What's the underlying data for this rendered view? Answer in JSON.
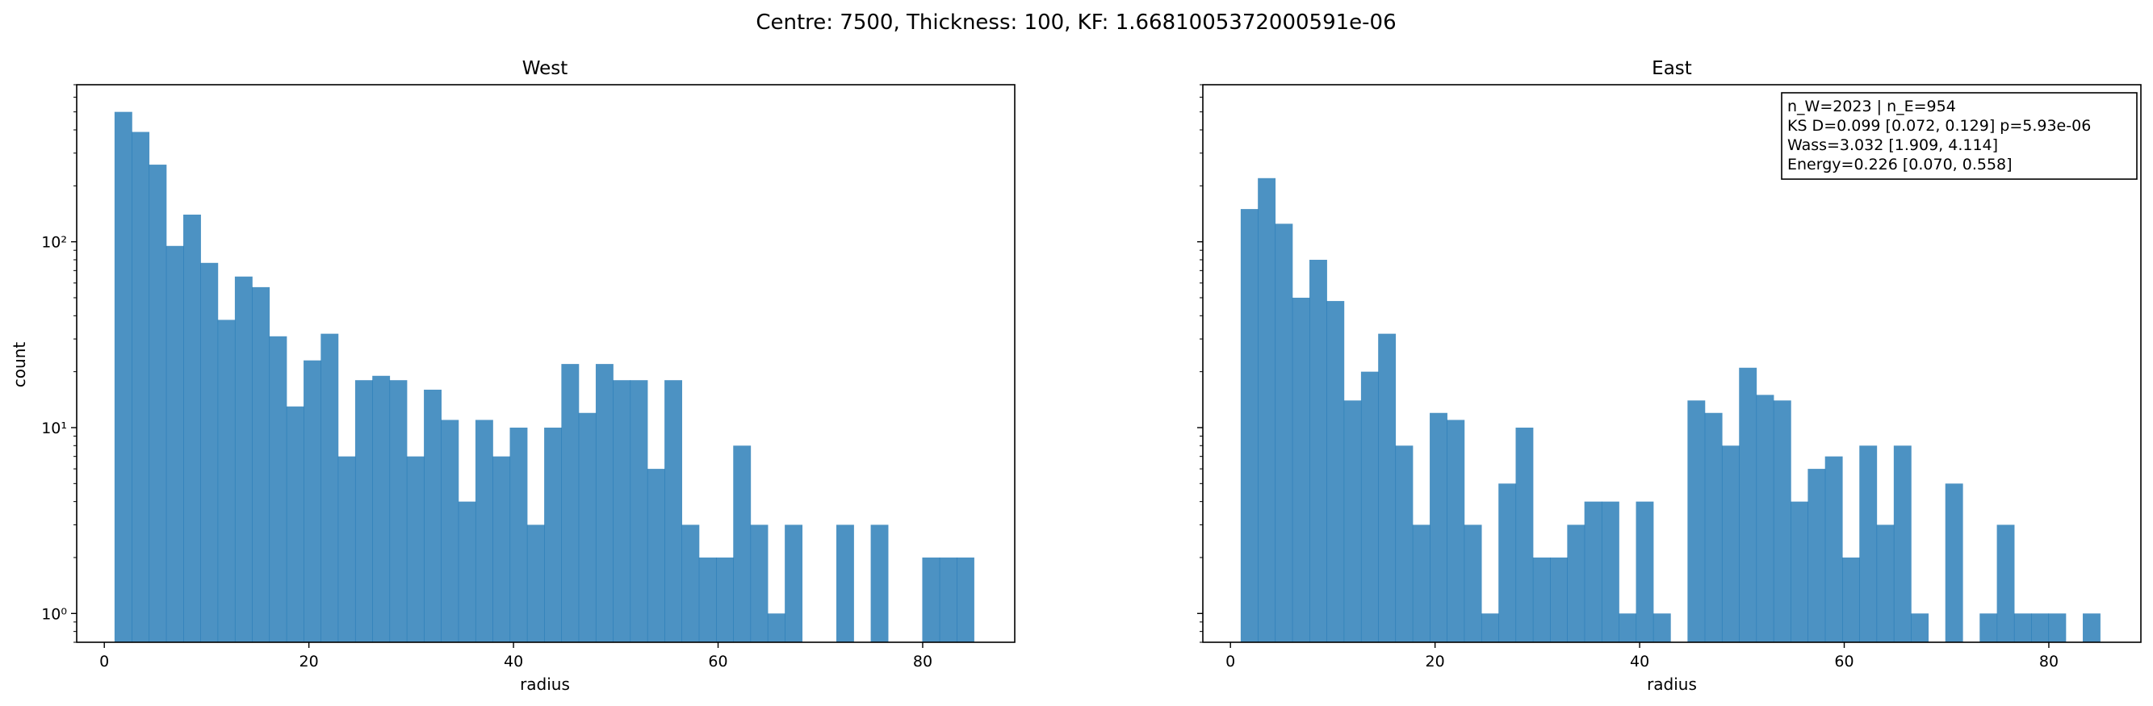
{
  "figure": {
    "suptitle": "Centre: 7500, Thickness: 100, KF: 1.6681005372000591e-06"
  },
  "chart_data": [
    {
      "type": "bar",
      "subtype": "histogram",
      "title": "West",
      "xlabel": "radius",
      "ylabel": "count",
      "yscale": "log",
      "xlim": [
        -2.7,
        89.0
      ],
      "ylim": [
        0.7,
        700
      ],
      "xticks": [
        0,
        20,
        40,
        60,
        80
      ],
      "yticks": [
        1,
        10,
        100
      ],
      "yticklabels": [
        "10⁰",
        "10¹",
        "10²"
      ],
      "color": "#1f77b4",
      "bin_start": 1.0,
      "bin_width": 1.68,
      "counts": [
        500,
        390,
        260,
        95,
        140,
        77,
        38,
        65,
        57,
        31,
        13,
        23,
        32,
        7,
        18,
        19,
        18,
        7,
        16,
        11,
        4,
        11,
        7,
        10,
        3,
        10,
        22,
        12,
        22,
        18,
        18,
        6,
        18,
        3,
        2,
        2,
        8,
        3,
        1,
        3,
        0,
        0,
        3,
        0,
        3,
        0,
        0,
        2,
        2,
        2
      ],
      "annotation": null
    },
    {
      "type": "bar",
      "subtype": "histogram",
      "title": "East",
      "xlabel": "radius",
      "ylabel": "",
      "yscale": "log",
      "xlim": [
        -2.7,
        89.0
      ],
      "ylim": [
        0.7,
        700
      ],
      "xticks": [
        0,
        20,
        40,
        60,
        80
      ],
      "yticks": [
        1,
        10,
        100
      ],
      "yticklabels": [
        "",
        "",
        ""
      ],
      "color": "#1f77b4",
      "bin_start": 1.0,
      "bin_width": 1.68,
      "counts": [
        150,
        220,
        125,
        50,
        80,
        48,
        14,
        20,
        32,
        8,
        3,
        12,
        11,
        3,
        1,
        5,
        10,
        2,
        2,
        3,
        4,
        4,
        1,
        4,
        1,
        0,
        14,
        12,
        8,
        21,
        15,
        14,
        4,
        6,
        7,
        2,
        8,
        3,
        8,
        1,
        0,
        5,
        0,
        1,
        3,
        1,
        1,
        1,
        0,
        1
      ],
      "annotation": {
        "lines": [
          "n_W=2023 | n_E=954",
          "KS D=0.099 [0.072, 0.129]  p=5.93e-06",
          "Wass=3.032 [1.909, 4.114]",
          "Energy=0.226 [0.070, 0.558]"
        ]
      }
    }
  ]
}
